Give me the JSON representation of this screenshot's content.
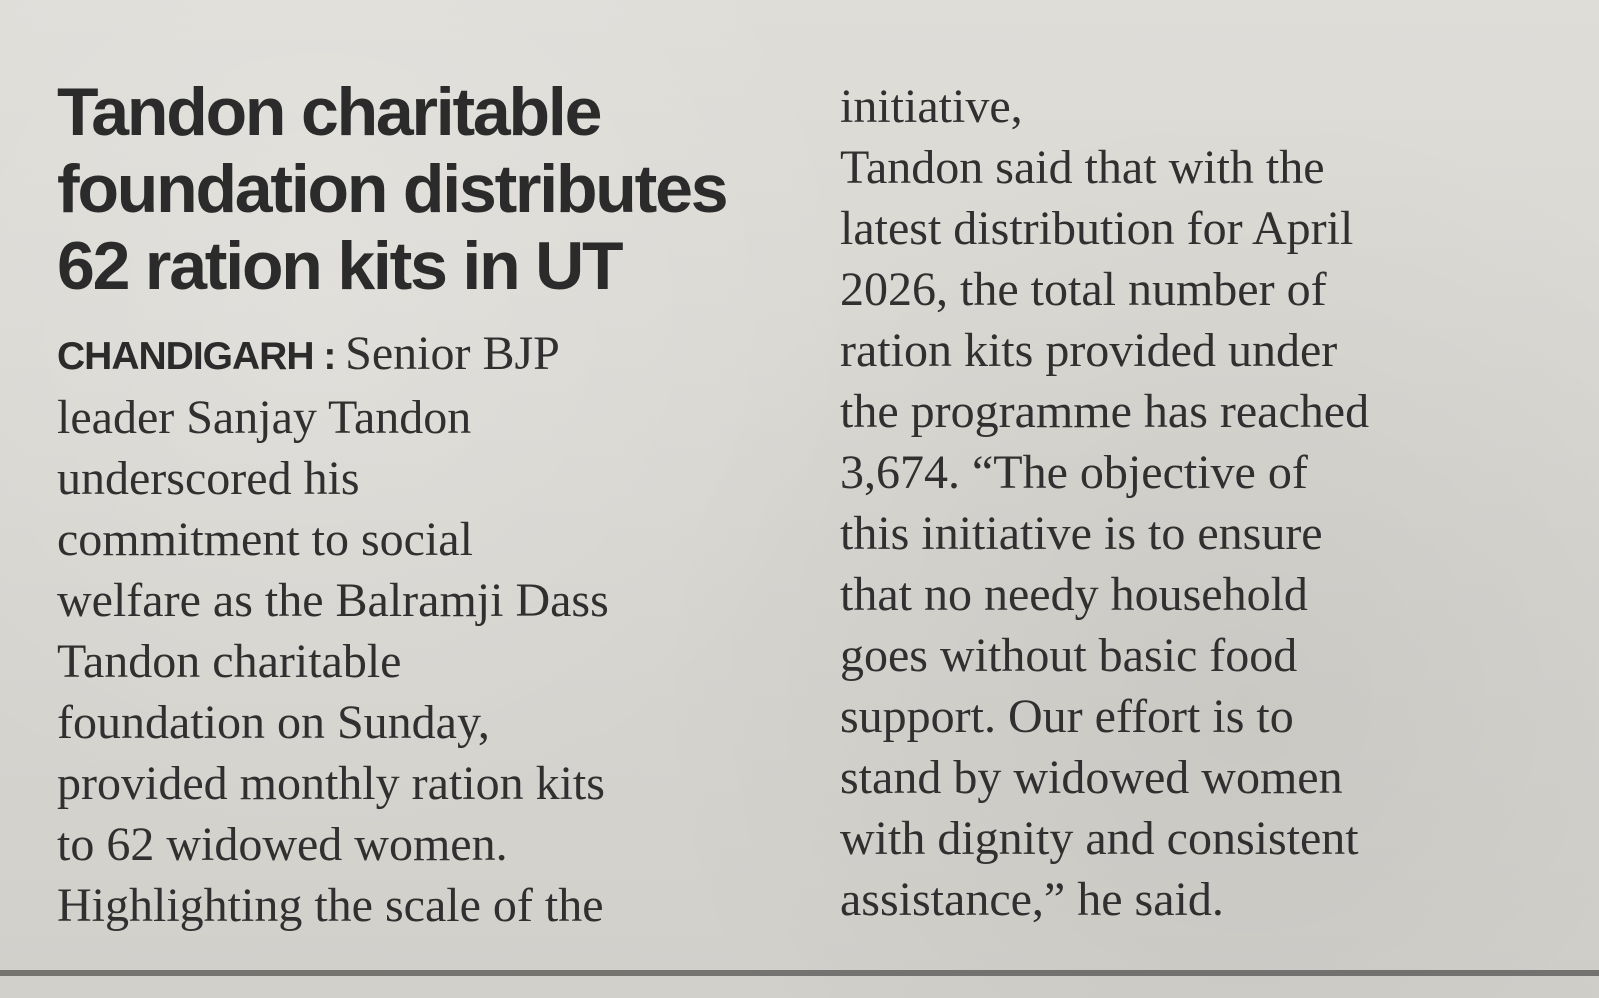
{
  "top_fragment": "· · · · · · · ·",
  "article": {
    "headline": "Tandon charitable\nfoundation distributes\n62 ration kits in UT",
    "dateline": "CHANDIGARH : ",
    "left_body": "Senior BJP\nleader Sanjay Tandon\nunderscored his\ncommitment to social\nwelfare as the Balramji Dass\nTandon charitable\nfoundation on Sunday,\nprovided monthly ration kits\nto 62 widowed women.\nHighlighting the scale of the",
    "right_body": "initiative,\nTandon said that with the\nlatest distribution for April\n2026, the total number of\nration kits provided under\nthe programme has reached\n3,674. “The objective of\nthis initiative is to ensure\nthat no needy household\ngoes without basic food\nsupport. Our effort is to\nstand by widowed women\nwith dignity and consistent\nassistance,” he said."
  },
  "colors": {
    "paper": "#d8d6d1",
    "ink": "#2b2b2b"
  }
}
